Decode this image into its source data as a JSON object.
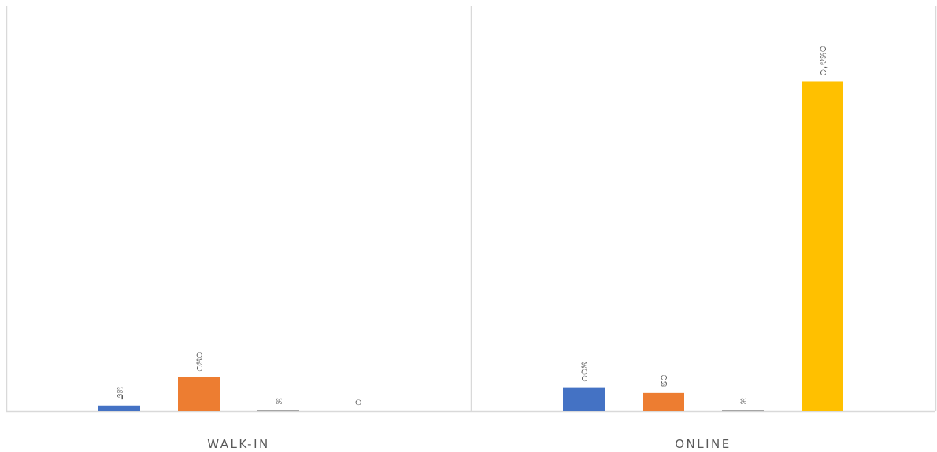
{
  "chart_data": {
    "type": "bar",
    "title": "",
    "xlabel": "",
    "ylabel": "",
    "categories": [
      "WALK-IN",
      "ONLINE"
    ],
    "series": [
      {
        "color": "#4472C4",
        "values": [
          25,
          105
        ],
        "labels": [
          "೨೫",
          "೧೦೫"
        ]
      },
      {
        "color": "#ED7D31",
        "values": [
          150,
          80
        ],
        "labels": [
          "೧೫೦",
          "೮೦"
        ]
      },
      {
        "color": "#A5A5A5",
        "values": [
          5,
          5
        ],
        "labels": [
          "೫",
          "೫"
        ]
      },
      {
        "color": "#FFC000",
        "values": [
          0,
          1450
        ],
        "labels": [
          "೦",
          "೧,೪೫೦"
        ]
      }
    ],
    "ylim": [
      0,
      1780
    ],
    "grid": false,
    "legend": "none",
    "axis_color": "#D9D9D9",
    "label_color": "#595959"
  }
}
